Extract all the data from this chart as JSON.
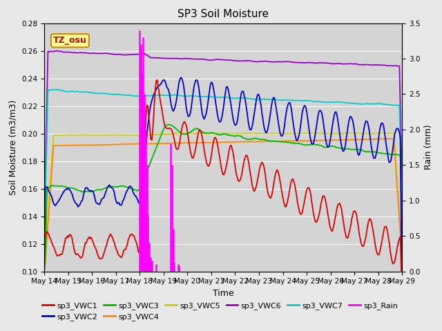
{
  "title": "SP3 Soil Moisture",
  "xlabel": "Time",
  "ylabel_left": "Soil Moisture (m3/m3)",
  "ylabel_right": "Rain (mm)",
  "ylim_left": [
    0.1,
    0.28
  ],
  "ylim_right": [
    0.0,
    3.5
  ],
  "bg_color": "#e8e8e8",
  "plot_bg_color": "#d4d4d4",
  "annotation_text": "TZ_osu",
  "annotation_color": "#cc0000",
  "annotation_bg": "#ffff99",
  "annotation_edge": "#cc8800",
  "x_tick_labels": [
    "May 14",
    "May 15",
    "May 16",
    "May 17",
    "May 18",
    "May 19",
    "May 20",
    "May 21",
    "May 22",
    "May 23",
    "May 24",
    "May 25",
    "May 26",
    "May 27",
    "May 28",
    "May 29"
  ],
  "series_colors": {
    "sp3_VWC1": "#dd0000",
    "sp3_VWC2": "#0000cc",
    "sp3_VWC3": "#00bb00",
    "sp3_VWC4": "#ff8800",
    "sp3_VWC5": "#cccc00",
    "sp3_VWC6": "#9900cc",
    "sp3_VWC7": "#00cccc",
    "sp3_Rain": "#ff00ff"
  },
  "grid_color": "#ffffff",
  "title_fontsize": 11,
  "label_fontsize": 9,
  "tick_fontsize": 7.5
}
